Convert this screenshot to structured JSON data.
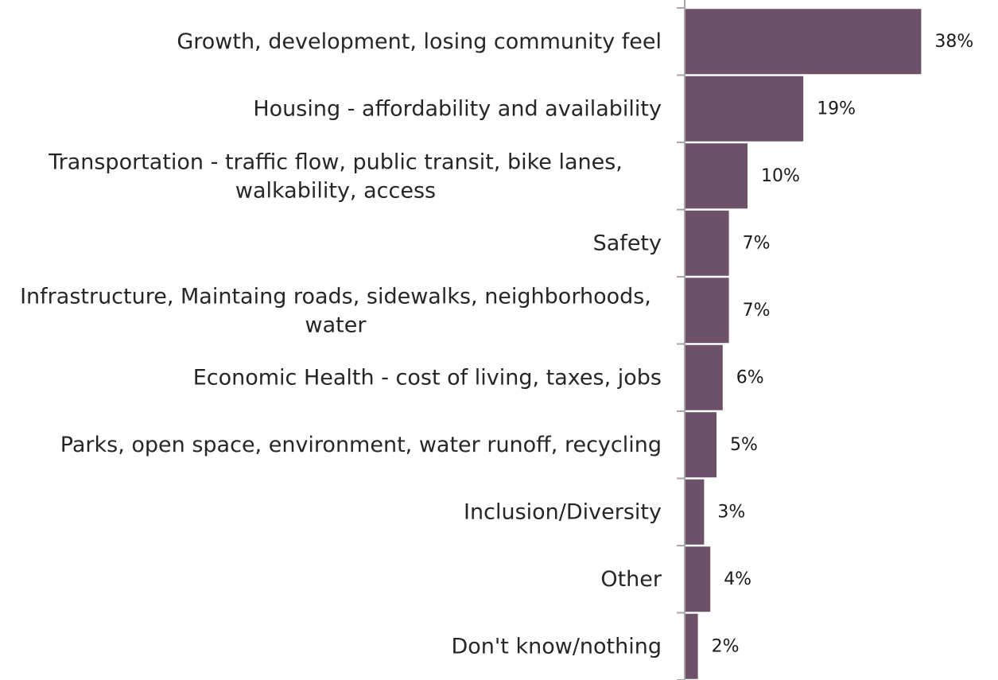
{
  "chart_data": {
    "type": "bar",
    "orientation": "horizontal",
    "categories": [
      [
        "Growth, development, losing community feel"
      ],
      [
        "Housing - affordability and availability"
      ],
      [
        "Transportation - traffic flow, public transit, bike lanes,",
        "walkability, access"
      ],
      [
        "Safety"
      ],
      [
        "Infrastructure, Maintaing roads, sidewalks, neighborhoods,",
        "water"
      ],
      [
        "Economic Health - cost of living, taxes, jobs"
      ],
      [
        "Parks, open space, environment, water runoff, recycling"
      ],
      [
        "Inclusion/Diversity"
      ],
      [
        "Other"
      ],
      [
        "Don't know/nothing"
      ]
    ],
    "values": [
      38,
      19,
      10,
      7,
      7,
      6,
      5,
      3,
      4,
      2
    ],
    "value_labels": [
      "38%",
      "19%",
      "10%",
      "7%",
      "7%",
      "6%",
      "5%",
      "3%",
      "4%",
      "2%"
    ],
    "value_unit": "%",
    "bar_color": "#6d5169",
    "legend": "none",
    "grid": false
  }
}
